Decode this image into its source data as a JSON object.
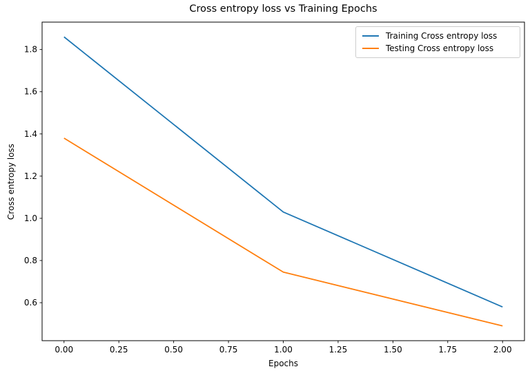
{
  "chart_data": {
    "type": "line",
    "title": "Cross entropy loss vs Training Epochs",
    "xlabel": "Epochs",
    "ylabel": "Cross entropy loss",
    "x": [
      0,
      1,
      2
    ],
    "series": [
      {
        "name": "Training Cross entropy loss",
        "color": "#1f77b4",
        "values": [
          1.86,
          1.03,
          0.58
        ]
      },
      {
        "name": "Testing Cross entropy loss",
        "color": "#ff7f0e",
        "values": [
          1.38,
          0.745,
          0.49
        ]
      }
    ],
    "xlim": [
      -0.1,
      2.1
    ],
    "ylim": [
      0.42,
      1.93
    ],
    "xticks": [
      0.0,
      0.25,
      0.5,
      0.75,
      1.0,
      1.25,
      1.5,
      1.75,
      2.0
    ],
    "xtick_labels": [
      "0.00",
      "0.25",
      "0.50",
      "0.75",
      "1.00",
      "1.25",
      "1.50",
      "1.75",
      "2.00"
    ],
    "yticks": [
      0.6,
      0.8,
      1.0,
      1.2,
      1.4,
      1.6,
      1.8
    ],
    "ytick_labels": [
      "0.6",
      "0.8",
      "1.0",
      "1.2",
      "1.4",
      "1.6",
      "1.8"
    ],
    "grid": false,
    "legend_position": "upper right",
    "axis_color": "#000000",
    "text_color": "#000000"
  }
}
